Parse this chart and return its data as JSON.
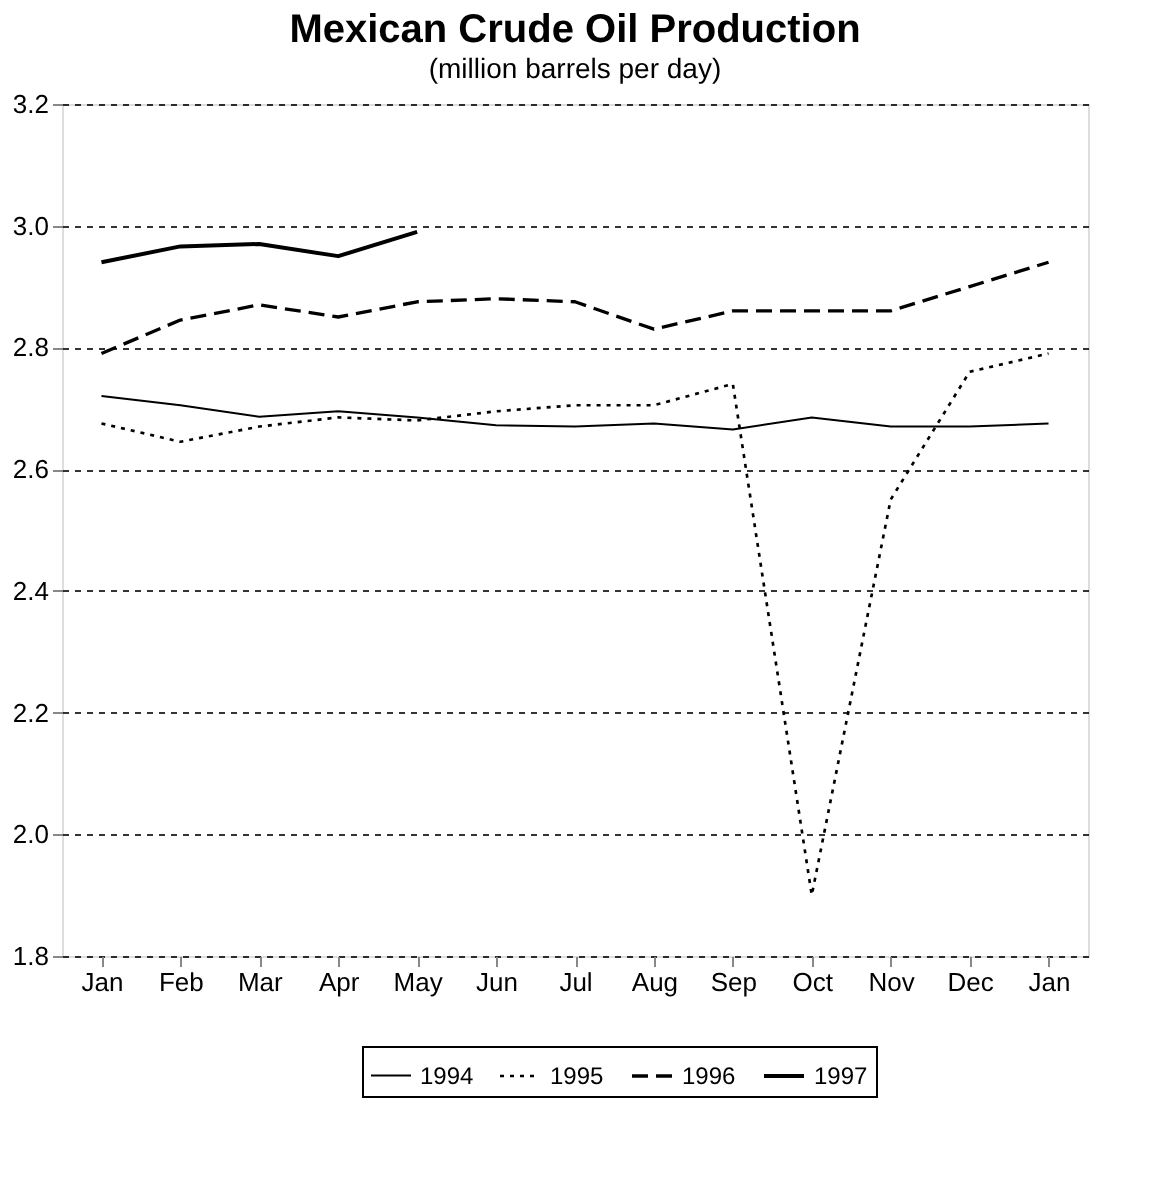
{
  "chart_data": {
    "type": "line",
    "title": "Mexican Crude Oil Production",
    "subtitle": "(million barrels per day)",
    "categories": [
      "Jan",
      "Feb",
      "Mar",
      "Apr",
      "May",
      "Jun",
      "Jul",
      "Aug",
      "Sep",
      "Oct",
      "Nov",
      "Dec",
      "Jan"
    ],
    "series": [
      {
        "name": "1994",
        "color": "#000000",
        "line_style": "solid",
        "values": [
          2.72,
          2.705,
          2.686,
          2.695,
          2.685,
          2.672,
          2.67,
          2.675,
          2.665,
          2.685,
          2.67,
          2.67,
          2.675
        ]
      },
      {
        "name": "1995",
        "color": "#000000",
        "line_style": "dotted",
        "values": [
          2.675,
          2.645,
          2.67,
          2.685,
          2.68,
          2.695,
          2.705,
          2.705,
          2.74,
          1.9,
          2.55,
          2.76,
          2.79
        ]
      },
      {
        "name": "1996",
        "color": "#000000",
        "line_style": "dashed",
        "values": [
          2.79,
          2.845,
          2.87,
          2.85,
          2.875,
          2.88,
          2.875,
          2.83,
          2.86,
          2.86,
          2.86,
          2.9,
          2.94
        ]
      },
      {
        "name": "1997",
        "color": "#000000",
        "line_style": "solid",
        "values": [
          2.94,
          2.966,
          2.97,
          2.95,
          2.99,
          null,
          null,
          null,
          null,
          null,
          null,
          null,
          null
        ]
      }
    ],
    "ylim": [
      1.8,
      3.2
    ],
    "yticks": [
      1.8,
      {
        "value": 2,
        "label": "2.0"
      },
      2.2,
      2.4,
      2.6,
      2.8,
      {
        "value": 3,
        "label": "3.0"
      },
      3.2
    ],
    "grid": "y",
    "legend": "bottom",
    "marker": "none"
  }
}
